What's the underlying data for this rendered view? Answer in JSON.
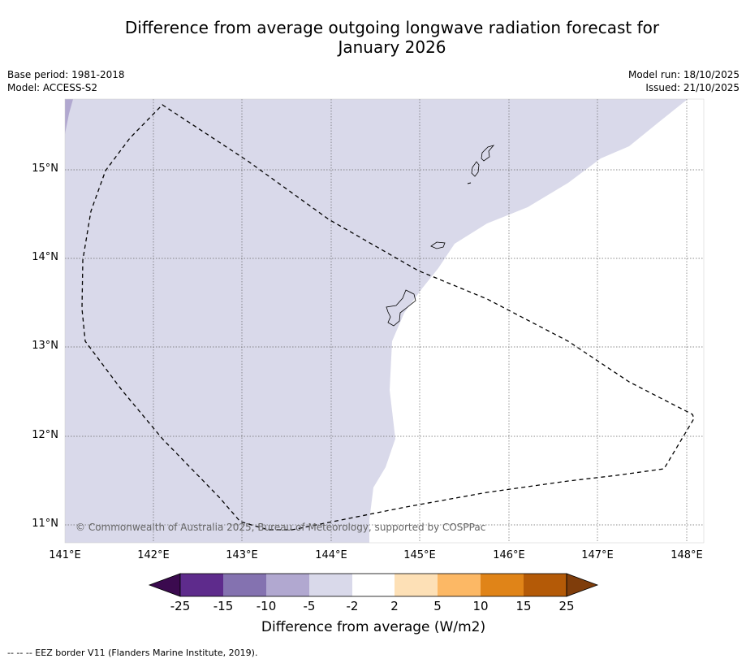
{
  "title_line1": "Difference from average outgoing longwave radiation forecast for",
  "title_line2": "January 2026",
  "meta_left": {
    "base_period": "Base period: 1981-2018",
    "model": "Model: ACCESS-S2"
  },
  "meta_right": {
    "model_run": "Model run: 18/10/2025",
    "issued": "Issued: 21/10/2025"
  },
  "map": {
    "lat_labels": [
      "15°N",
      "14°N",
      "13°N",
      "12°N",
      "11°N"
    ],
    "lon_labels": [
      "141°E",
      "142°E",
      "143°E",
      "144°E",
      "145°E",
      "146°E",
      "147°E",
      "148°E"
    ],
    "copyright": "© Commonwealth of Australia 2025, Bureau of Meteorology, supported by COSPPac"
  },
  "colorbar": {
    "ticks": [
      "-25",
      "-15",
      "-10",
      "-5",
      "-2",
      "2",
      "5",
      "10",
      "15",
      "25"
    ],
    "colors": [
      "#3b0a4f",
      "#5e2b8c",
      "#8472b0",
      "#b1a8d0",
      "#d9d9ea",
      "#ffffff",
      "#fde0b6",
      "#fcb865",
      "#e08418",
      "#b45a07",
      "#7f3d0b"
    ],
    "label": "Difference from average (W/m2)"
  },
  "legend_text": "--  --  -- EEZ border V11 (Flanders Marine Institute, 2019)."
}
